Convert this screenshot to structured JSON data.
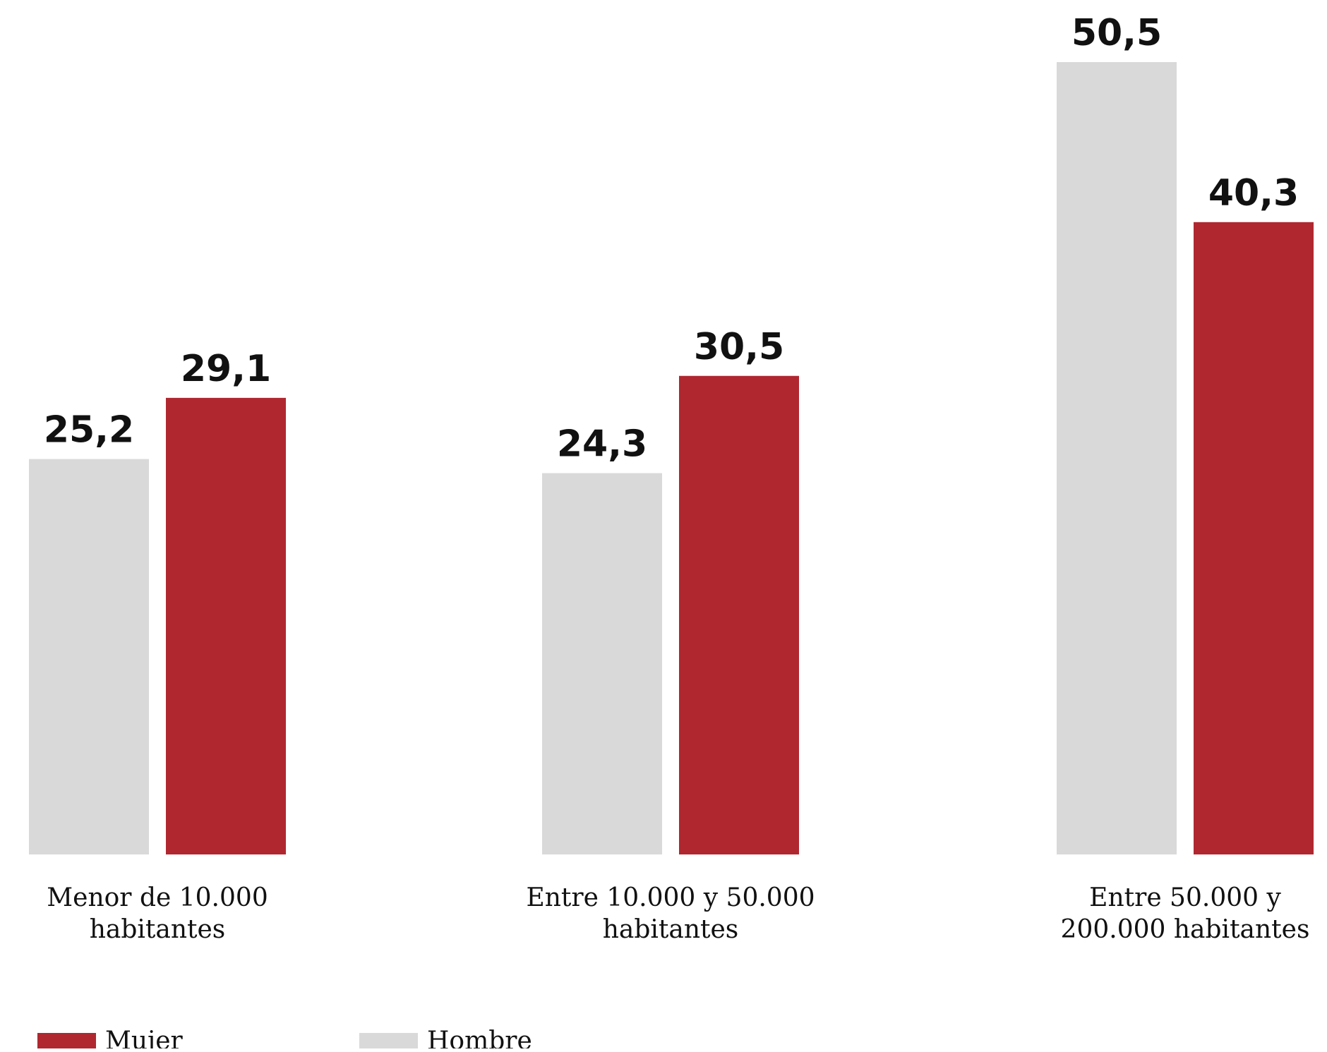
{
  "chart_data": {
    "type": "bar",
    "title": "",
    "xlabel": "",
    "ylabel": "",
    "ylim": [
      0,
      50.5
    ],
    "grid": false,
    "legend_position": "bottom-left",
    "categories": [
      [
        "Menor de 10.000",
        "habitantes"
      ],
      [
        "Entre 10.000 y 50.000",
        "habitantes"
      ],
      [
        "Entre 50.000 y",
        "200.000 habitantes"
      ]
    ],
    "series": [
      {
        "name": "Hombre",
        "color": "#d9d9d9",
        "values": [
          25.2,
          24.3,
          50.5
        ],
        "labels": [
          "25,2",
          "24,3",
          "50,5"
        ]
      },
      {
        "name": "Mujer",
        "color": "#b02730",
        "values": [
          29.1,
          30.5,
          40.3
        ],
        "labels": [
          "29,1",
          "30,5",
          "40,3"
        ]
      }
    ],
    "legend": [
      {
        "name": "Mujer",
        "color": "#b02730"
      },
      {
        "name": "Hombre",
        "color": "#d9d9d9"
      }
    ]
  }
}
